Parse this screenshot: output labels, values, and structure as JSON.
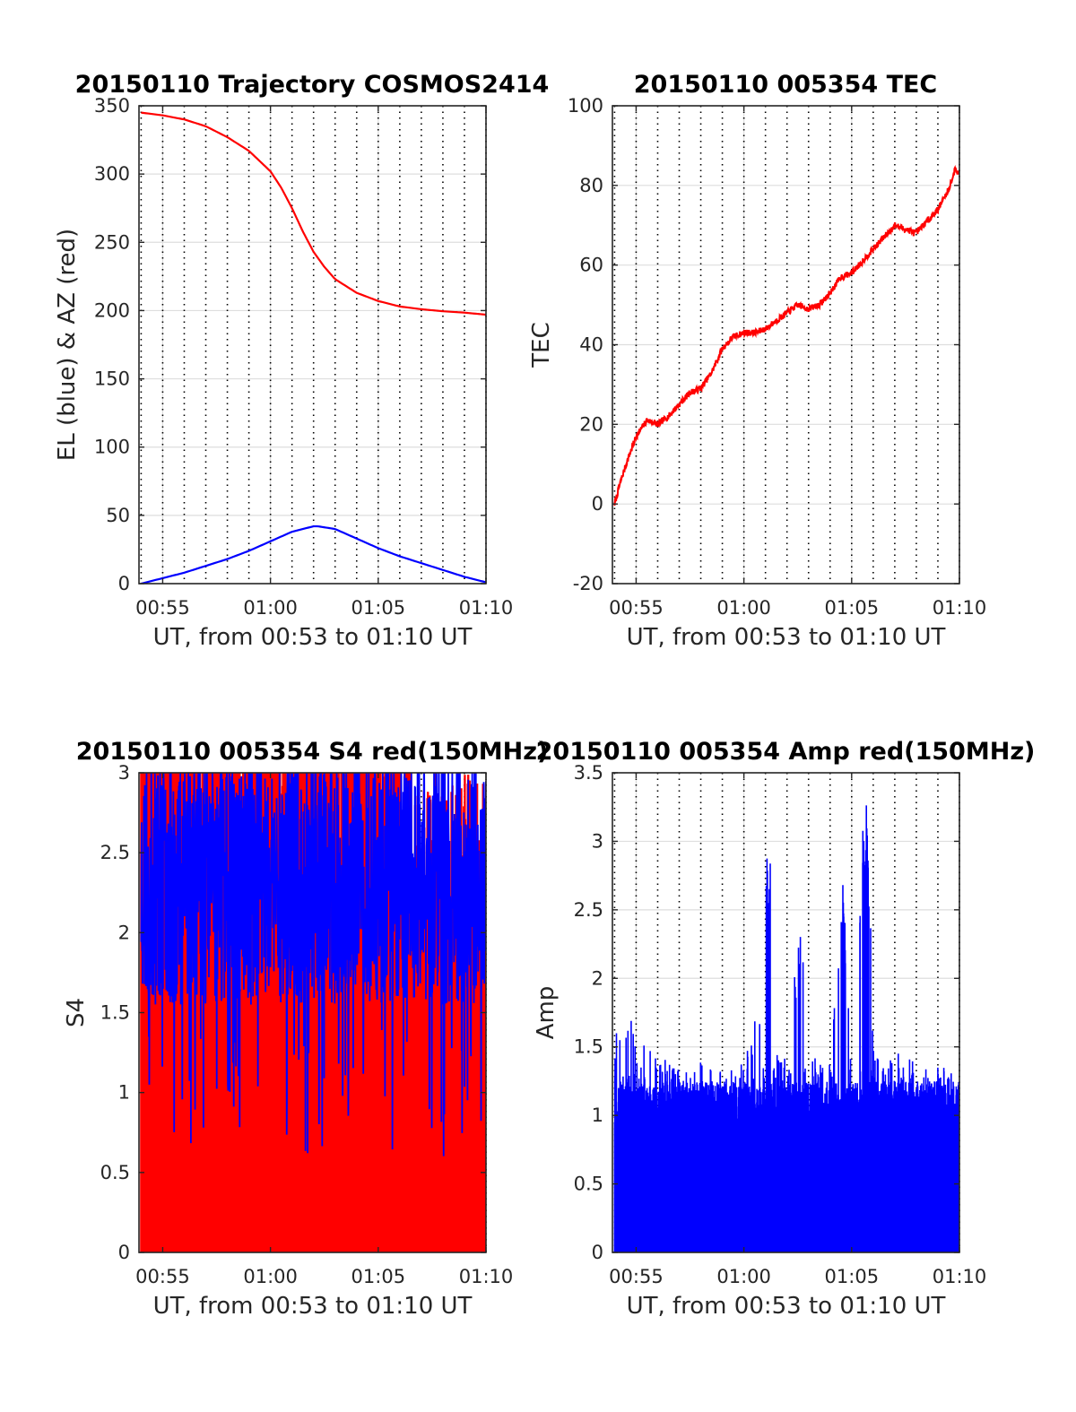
{
  "chart_data": [
    {
      "type": "line",
      "title": "20150110 Trajectory COSMOS2414",
      "xlabel": "UT, from 00:53 to 01:10 UT",
      "ylabel": "EL (blue) & AZ (red)",
      "xlim": [
        53.9,
        70.0
      ],
      "ylim": [
        0,
        350
      ],
      "yticks": [
        0,
        50,
        100,
        150,
        200,
        250,
        300,
        350
      ],
      "xticks": [
        55,
        60,
        65,
        70
      ],
      "xticklabels": [
        "00:55",
        "01:00",
        "01:05",
        "01:10"
      ],
      "grid": true,
      "series": [
        {
          "color": "#ff0000",
          "x": [
            54.0,
            55.0,
            56.0,
            57.0,
            58.0,
            59.0,
            60.0,
            60.5,
            61.0,
            61.5,
            62.0,
            62.5,
            63.0,
            64.0,
            65.0,
            66.0,
            67.0,
            68.0,
            69.0,
            70.0
          ],
          "y": [
            345,
            343,
            340,
            335,
            327,
            317,
            302,
            290,
            275,
            258,
            243,
            232,
            223,
            213,
            207,
            203,
            201,
            199.5,
            198.5,
            197
          ]
        },
        {
          "color": "#0000ff",
          "x": [
            54.0,
            55.0,
            56.0,
            57.0,
            58.0,
            59.0,
            60.0,
            61.0,
            62.0,
            62.2,
            63.0,
            64.0,
            65.0,
            66.0,
            67.0,
            68.0,
            69.0,
            70.0
          ],
          "y": [
            0,
            4,
            8,
            13,
            18,
            24,
            31,
            38,
            42,
            42,
            40,
            33,
            26,
            20,
            15,
            10,
            5,
            1
          ]
        }
      ]
    },
    {
      "type": "line",
      "title": "20150110 005354 TEC",
      "xlabel": "UT, from 00:53 to 01:10 UT",
      "ylabel": "TEC",
      "xlim": [
        53.9,
        70.0
      ],
      "ylim": [
        -20,
        100
      ],
      "yticks": [
        -20,
        0,
        20,
        40,
        60,
        80,
        100
      ],
      "xticks": [
        55,
        60,
        65,
        70
      ],
      "xticklabels": [
        "00:55",
        "01:00",
        "01:05",
        "01:10"
      ],
      "grid": true,
      "series": [
        {
          "color": "#ff0000",
          "x": [
            54.0,
            54.3,
            54.6,
            55.0,
            55.5,
            56.0,
            56.5,
            57.0,
            57.5,
            58.0,
            58.5,
            59.0,
            59.5,
            60.0,
            60.5,
            61.0,
            61.5,
            62.0,
            62.5,
            63.0,
            63.5,
            64.0,
            64.5,
            65.0,
            65.5,
            66.0,
            66.5,
            67.0,
            67.5,
            68.0,
            68.5,
            69.0,
            69.5,
            69.8,
            70.0
          ],
          "y": [
            0,
            6,
            11,
            17,
            21,
            20,
            22,
            25,
            28,
            29,
            33,
            39,
            42,
            43,
            43,
            44,
            46,
            48,
            50,
            49,
            50,
            53,
            57,
            58,
            61,
            64,
            67,
            70,
            69,
            68,
            71,
            74,
            79,
            84,
            83
          ]
        }
      ]
    },
    {
      "type": "line",
      "title": "20150110 005354 S4 red(150MHz)",
      "xlabel": "UT, from 00:53 to 01:10 UT",
      "ylabel": "S4",
      "xlim": [
        53.9,
        70.0
      ],
      "ylim": [
        0,
        3
      ],
      "yticks": [
        0,
        0.5,
        1,
        1.5,
        2,
        2.5,
        3
      ],
      "xticks": [
        55,
        60,
        65,
        70
      ],
      "xticklabels": [
        "00:55",
        "01:00",
        "01:05",
        "01:10"
      ],
      "grid": true,
      "series": [
        {
          "color": "#ff0000",
          "x": [
            54.0,
            70.0
          ],
          "y": [
            0,
            3
          ]
        },
        {
          "color": "#0000ff",
          "x": [
            54.0,
            70.0
          ],
          "y": [
            1.4,
            3
          ]
        }
      ]
    },
    {
      "type": "line",
      "title": "20150110 005354 Amp red(150MHz)",
      "xlabel": "UT, from 00:53 to 01:10 UT",
      "ylabel": "Amp",
      "xlim": [
        53.9,
        70.0
      ],
      "ylim": [
        0,
        3.5
      ],
      "yticks": [
        0,
        0.5,
        1,
        1.5,
        2,
        2.5,
        3,
        3.5
      ],
      "xticks": [
        55,
        60,
        65,
        70
      ],
      "xticklabels": [
        "00:55",
        "01:00",
        "01:05",
        "01:10"
      ],
      "grid": true,
      "series": [
        {
          "color": "#0000ff",
          "x": [
            54.0,
            54.5,
            55.0,
            56.0,
            57.0,
            58.0,
            59.0,
            60.0,
            60.7,
            61.0,
            61.3,
            62.0,
            62.6,
            63.0,
            64.0,
            64.6,
            65.0,
            65.5,
            65.8,
            66.0,
            67.0,
            68.0,
            69.0,
            70.0
          ],
          "y": [
            1.6,
            1.8,
            1.6,
            1.5,
            1.3,
            1.4,
            1.3,
            1.4,
            1.8,
            2.9,
            1.5,
            1.4,
            2.5,
            1.5,
            1.4,
            2.7,
            1.4,
            2.9,
            3.3,
            1.5,
            1.5,
            1.4,
            1.3,
            1.1
          ]
        }
      ]
    }
  ]
}
